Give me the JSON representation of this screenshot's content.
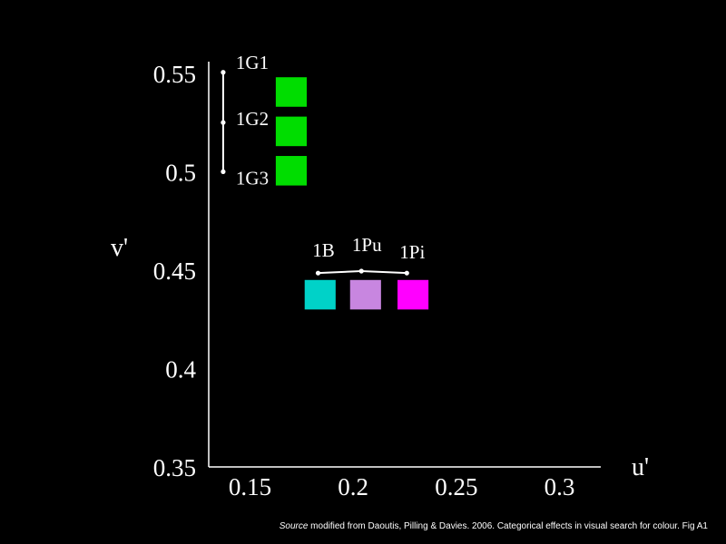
{
  "chart_data": {
    "type": "scatter",
    "xlabel": "u'",
    "ylabel": "v'",
    "xlim": [
      0.13,
      0.32
    ],
    "ylim": [
      0.35,
      0.555
    ],
    "x_ticks": [
      {
        "value": 0.15,
        "label": "0.15"
      },
      {
        "value": 0.2,
        "label": "0.2"
      },
      {
        "value": 0.25,
        "label": "0.25"
      },
      {
        "value": 0.3,
        "label": "0.3"
      }
    ],
    "y_ticks": [
      {
        "value": 0.55,
        "label": "0.55"
      },
      {
        "value": 0.5,
        "label": "0.5"
      },
      {
        "value": 0.45,
        "label": "0.45"
      },
      {
        "value": 0.4,
        "label": "0.4"
      },
      {
        "value": 0.35,
        "label": "0.35"
      }
    ],
    "groups": [
      {
        "orientation": "vertical",
        "points": [
          {
            "label": "1G1",
            "u": 0.137,
            "v": 0.5505
          },
          {
            "label": "1G2",
            "u": 0.137,
            "v": 0.525
          },
          {
            "label": "1G3",
            "u": 0.137,
            "v": 0.5
          }
        ]
      },
      {
        "orientation": "horizontal",
        "points": [
          {
            "label": "1B",
            "u": 0.183,
            "v": 0.4485
          },
          {
            "label": "1Pu",
            "u": 0.204,
            "v": 0.4495
          },
          {
            "label": "1Pi",
            "u": 0.226,
            "v": 0.4485
          }
        ]
      }
    ],
    "swatches": [
      {
        "name": "1G1",
        "color": "#00dd00",
        "u": 0.17,
        "v": 0.5405
      },
      {
        "name": "1G2",
        "color": "#00dd00",
        "u": 0.17,
        "v": 0.5205
      },
      {
        "name": "1G3",
        "color": "#00dd00",
        "u": 0.17,
        "v": 0.5005
      },
      {
        "name": "1B",
        "color": "#00d2c8",
        "u": 0.184,
        "v": 0.4375
      },
      {
        "name": "1Pu",
        "color": "#c886e0",
        "u": 0.206,
        "v": 0.4375
      },
      {
        "name": "1Pi",
        "color": "#ff00ff",
        "u": 0.229,
        "v": 0.4375
      }
    ],
    "swatch_size": {
      "du": 0.015,
      "dv": 0.015
    }
  },
  "source": {
    "prefix": "Source",
    "text": " modified from Daoutis, Pilling & Davies. 2006. Categorical effects in visual search for colour. Fig A1"
  }
}
